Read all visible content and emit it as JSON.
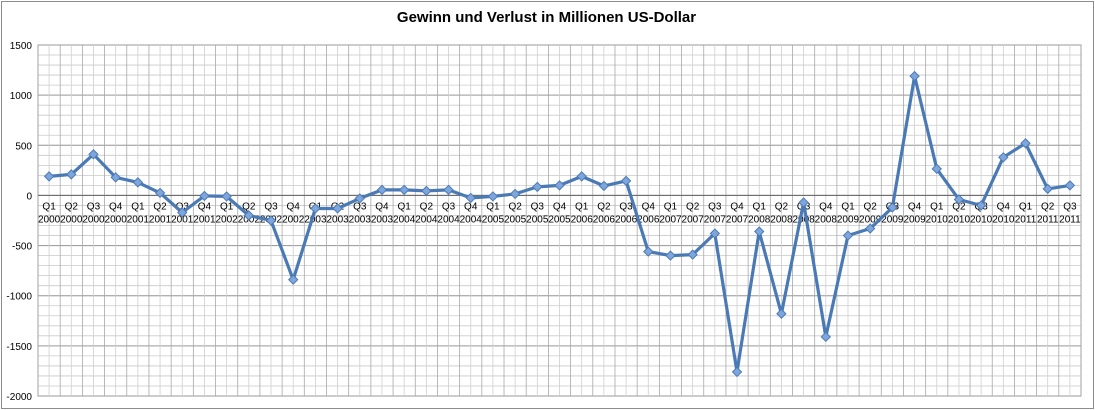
{
  "chart_data": {
    "type": "line",
    "title": "Gewinn und Verlust in Millionen US-Dollar",
    "xlabel": "",
    "ylabel": "",
    "ylim": [
      -2000,
      1500
    ],
    "yticks": [
      1500,
      1000,
      500,
      0,
      -500,
      -1000,
      -1500,
      -2000
    ],
    "grid": true,
    "legend": "none",
    "line_color": "#4a7ab5",
    "marker_color": "#7fa6dc",
    "categories": [
      {
        "q": "Q1",
        "y": "2000"
      },
      {
        "q": "Q2",
        "y": "2000"
      },
      {
        "q": "Q3",
        "y": "2000"
      },
      {
        "q": "Q4",
        "y": "2000"
      },
      {
        "q": "Q1",
        "y": "2001"
      },
      {
        "q": "Q2",
        "y": "2001"
      },
      {
        "q": "Q3",
        "y": "2001"
      },
      {
        "q": "Q4",
        "y": "2001"
      },
      {
        "q": "Q1",
        "y": "2002"
      },
      {
        "q": "Q2",
        "y": "2002"
      },
      {
        "q": "Q3",
        "y": "2002"
      },
      {
        "q": "Q4",
        "y": "2002"
      },
      {
        "q": "Q1",
        "y": "2003"
      },
      {
        "q": "Q2",
        "y": "2003"
      },
      {
        "q": "Q3",
        "y": "2003"
      },
      {
        "q": "Q4",
        "y": "2003"
      },
      {
        "q": "Q1",
        "y": "2004"
      },
      {
        "q": "Q2",
        "y": "2004"
      },
      {
        "q": "Q3",
        "y": "2004"
      },
      {
        "q": "Q4",
        "y": "2004"
      },
      {
        "q": "Q1",
        "y": "2005"
      },
      {
        "q": "Q2",
        "y": "2005"
      },
      {
        "q": "Q3",
        "y": "2005"
      },
      {
        "q": "Q4",
        "y": "2005"
      },
      {
        "q": "Q1",
        "y": "2006"
      },
      {
        "q": "Q2",
        "y": "2006"
      },
      {
        "q": "Q3",
        "y": "2006"
      },
      {
        "q": "Q4",
        "y": "2006"
      },
      {
        "q": "Q1",
        "y": "2007"
      },
      {
        "q": "Q2",
        "y": "2007"
      },
      {
        "q": "Q3",
        "y": "2007"
      },
      {
        "q": "Q4",
        "y": "2007"
      },
      {
        "q": "Q1",
        "y": "2008"
      },
      {
        "q": "Q2",
        "y": "2008"
      },
      {
        "q": "Q3",
        "y": "2008"
      },
      {
        "q": "Q4",
        "y": "2008"
      },
      {
        "q": "Q1",
        "y": "2009"
      },
      {
        "q": "Q2",
        "y": "2009"
      },
      {
        "q": "Q3",
        "y": "2009"
      },
      {
        "q": "Q4",
        "y": "2009"
      },
      {
        "q": "Q1",
        "y": "2010"
      },
      {
        "q": "Q2",
        "y": "2010"
      },
      {
        "q": "Q3",
        "y": "2010"
      },
      {
        "q": "Q4",
        "y": "2010"
      },
      {
        "q": "Q1",
        "y": "2011"
      },
      {
        "q": "Q2",
        "y": "2011"
      },
      {
        "q": "Q3",
        "y": "2011"
      }
    ],
    "values": [
      190,
      210,
      410,
      180,
      130,
      25,
      -170,
      -5,
      -10,
      -200,
      -250,
      -840,
      -130,
      -130,
      -30,
      55,
      55,
      45,
      55,
      -25,
      -10,
      15,
      85,
      100,
      190,
      95,
      145,
      -560,
      -600,
      -590,
      -380,
      -1760,
      -360,
      -1180,
      -70,
      -1410,
      -400,
      -330,
      -120,
      1190,
      265,
      -40,
      -100,
      380,
      520,
      65,
      100
    ]
  }
}
